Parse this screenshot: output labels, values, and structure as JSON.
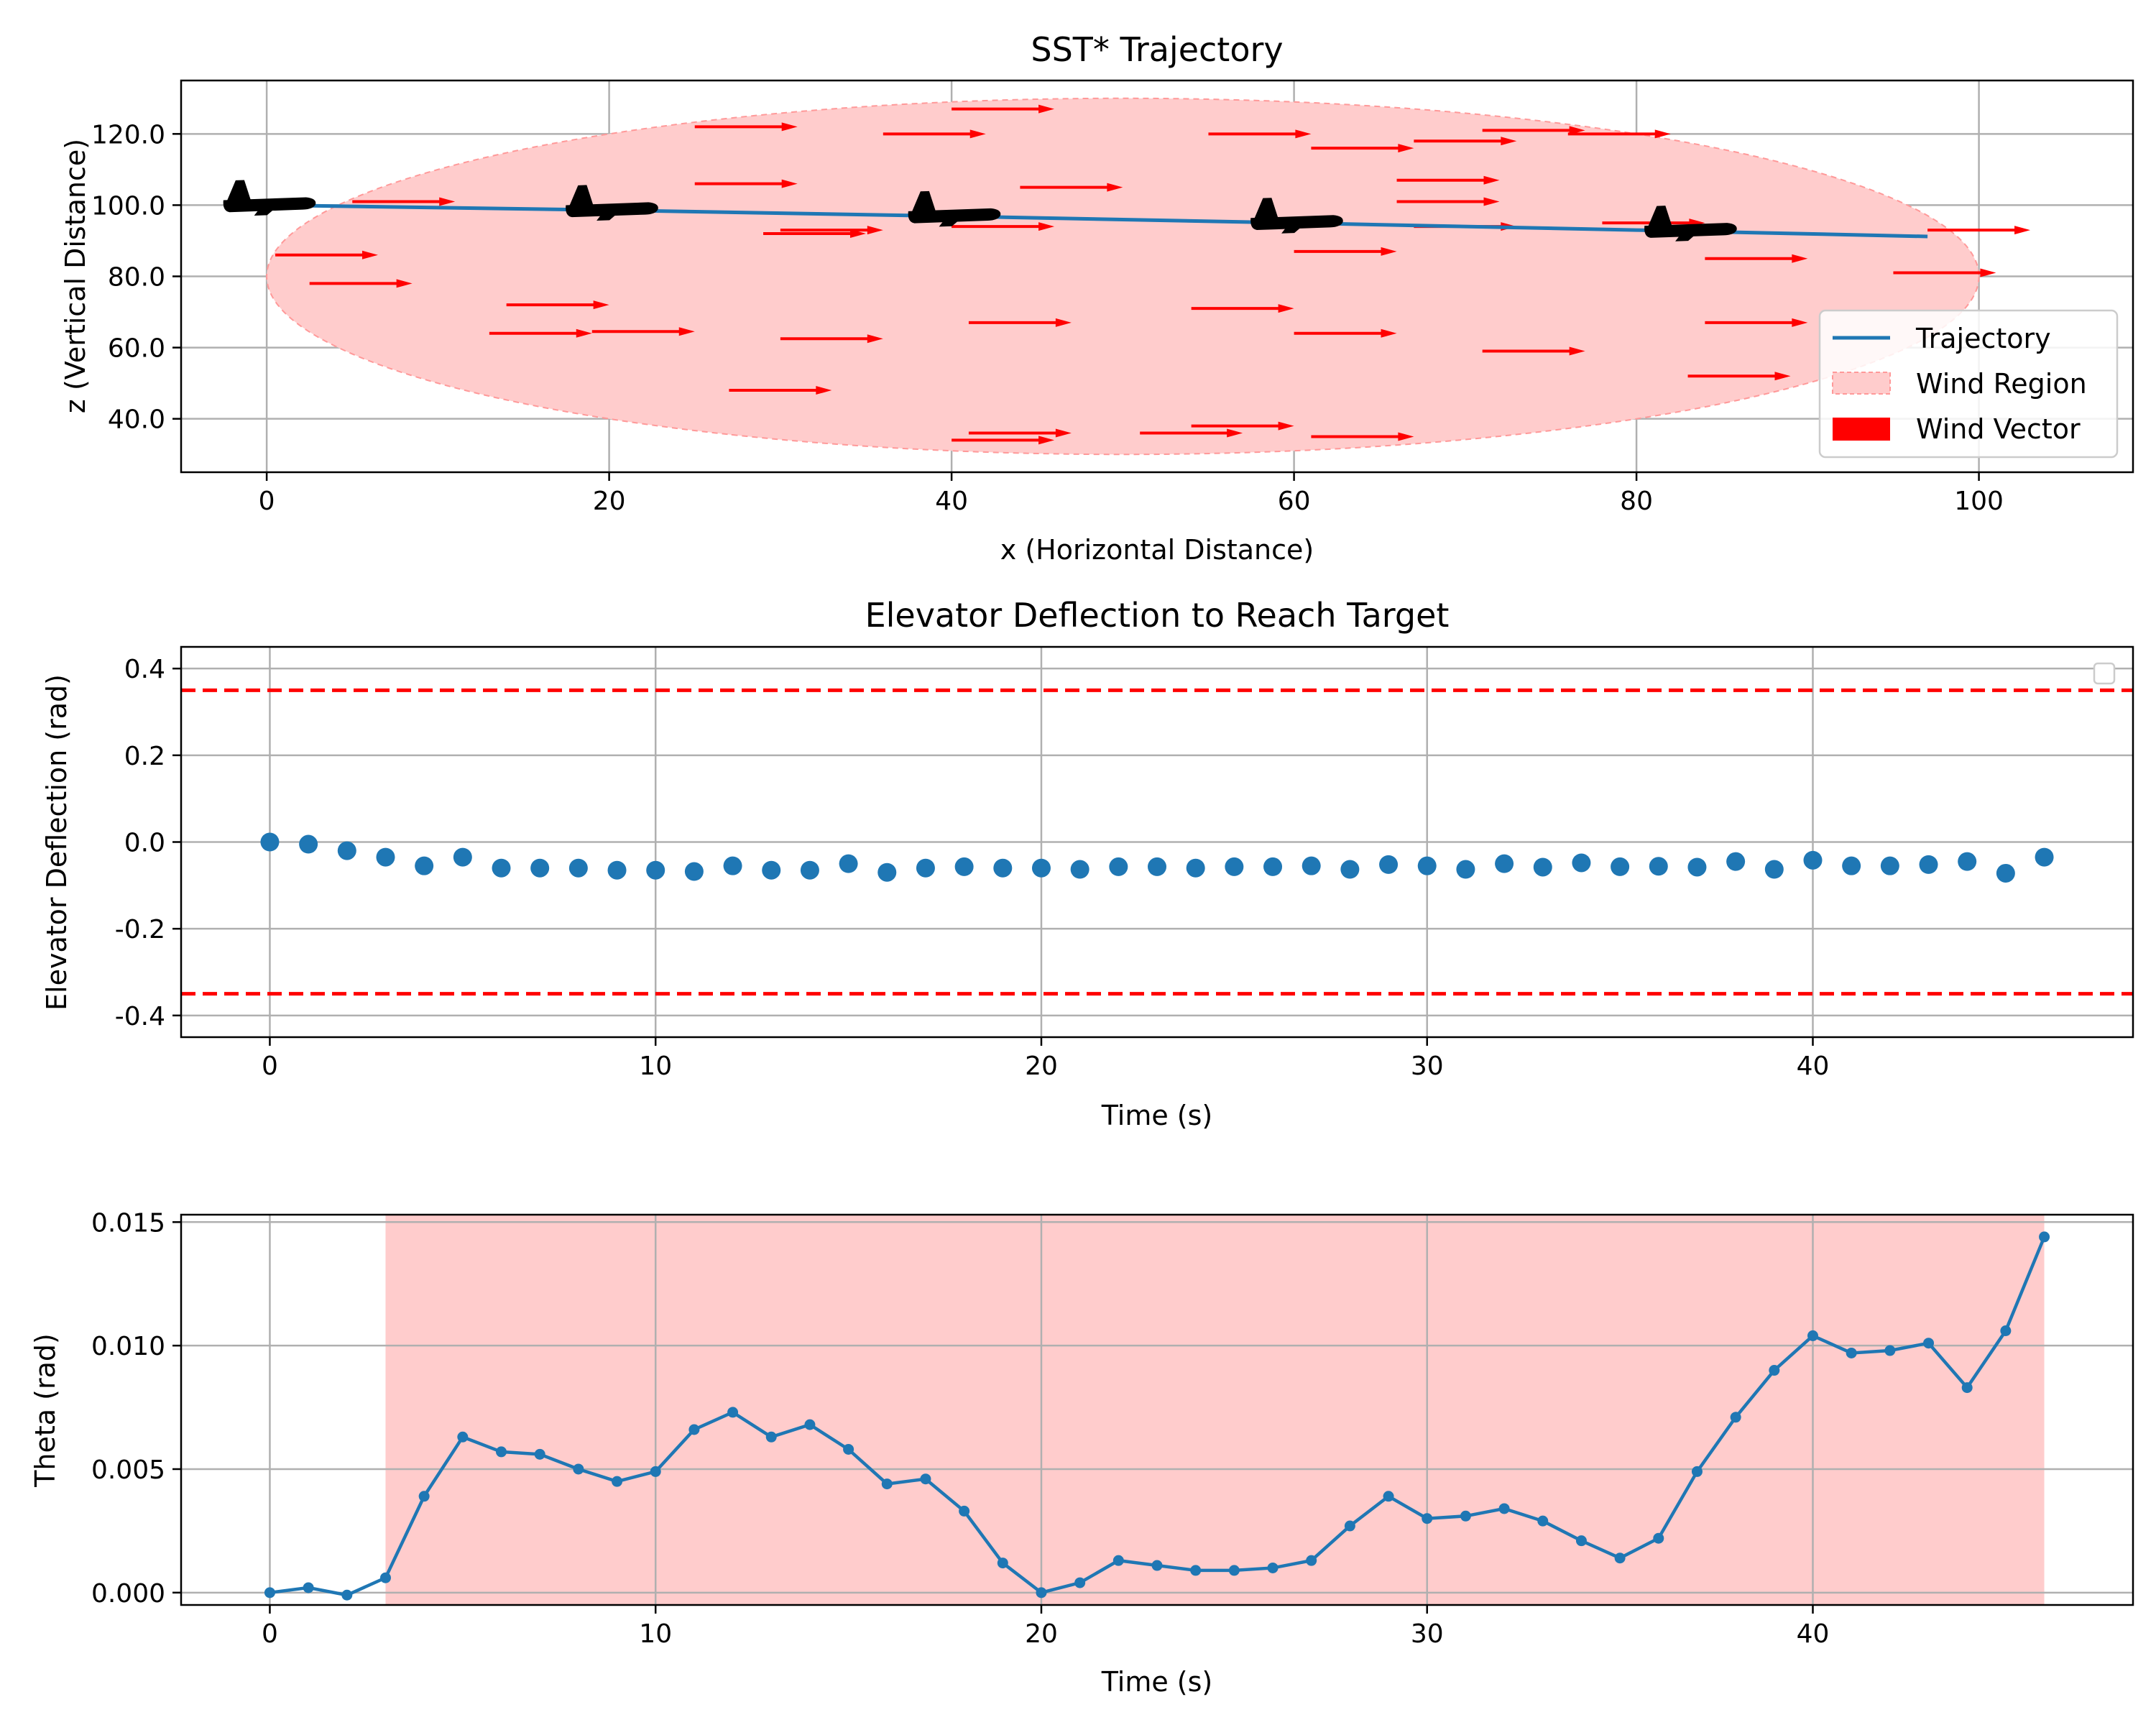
{
  "chart_data": [
    {
      "type": "line",
      "title": "SST* Trajectory",
      "xlabel": "x (Horizontal Distance)",
      "ylabel": "z (Vertical Distance)",
      "xlim": [
        -5,
        109
      ],
      "ylim": [
        25,
        135
      ],
      "xticks": [
        0,
        20,
        40,
        60,
        80,
        100
      ],
      "yticks": [
        40,
        60,
        80,
        100,
        120
      ],
      "grid": true,
      "legend": {
        "placement": "lower right",
        "entries": [
          "Trajectory",
          "Wind Region",
          "Wind Vector"
        ]
      },
      "colors": {
        "trajectory": "#1f77b4",
        "wind_region": "#ffcccc",
        "wind_vector": "#ff0000",
        "aircraft": "#000000"
      },
      "trajectory": {
        "name": "Trajectory",
        "x": [
          0,
          20,
          40,
          60,
          80,
          97
        ],
        "y": [
          100,
          98.6,
          96.9,
          95.0,
          93.0,
          91.2
        ]
      },
      "wind_region": {
        "name": "Wind Region",
        "center": [
          50,
          80
        ],
        "semi_axes": [
          50,
          50
        ]
      },
      "wind_vectors": {
        "name": "Wind Vector",
        "points": [
          [
            0.5,
            86
          ],
          [
            2.5,
            78
          ],
          [
            5,
            101
          ],
          [
            14,
            72
          ],
          [
            13,
            64
          ],
          [
            19,
            64.5
          ],
          [
            27,
            48
          ],
          [
            25,
            106
          ],
          [
            25,
            122
          ],
          [
            29,
            92
          ],
          [
            30,
            93
          ],
          [
            30,
            62.5
          ],
          [
            36,
            120
          ],
          [
            40,
            34
          ],
          [
            40,
            127
          ],
          [
            40,
            94
          ],
          [
            41,
            67
          ],
          [
            41,
            36
          ],
          [
            44,
            105
          ],
          [
            51,
            36
          ],
          [
            54,
            71
          ],
          [
            54,
            38
          ],
          [
            55,
            120
          ],
          [
            60,
            87
          ],
          [
            60,
            64
          ],
          [
            61,
            35
          ],
          [
            61,
            116
          ],
          [
            66,
            107
          ],
          [
            66,
            101
          ],
          [
            67,
            118
          ],
          [
            67,
            94
          ],
          [
            71,
            121
          ],
          [
            71,
            59
          ],
          [
            76,
            120
          ],
          [
            78,
            95
          ],
          [
            84,
            85
          ],
          [
            84,
            67
          ],
          [
            83,
            52
          ],
          [
            97,
            93
          ],
          [
            95,
            81
          ]
        ],
        "u": 6,
        "w": 0
      },
      "aircraft_markers": [
        {
          "x": 0,
          "y": 100
        },
        {
          "x": 20,
          "y": 98.6
        },
        {
          "x": 40,
          "y": 96.9
        },
        {
          "x": 60,
          "y": 95.0
        },
        {
          "x": 83,
          "y": 92.8
        }
      ]
    },
    {
      "type": "scatter",
      "title": "Elevator Deflection to Reach Target",
      "xlabel": "Time (s)",
      "ylabel": "Elevator Deflection (rad)",
      "xlim": [
        -2.3,
        48.3
      ],
      "ylim": [
        -0.45,
        0.45
      ],
      "xticks": [
        0,
        10,
        20,
        30,
        40
      ],
      "yticks": [
        -0.4,
        -0.2,
        0.0,
        0.2,
        0.4
      ],
      "grid": true,
      "legend": {
        "placement": "upper right",
        "entries": []
      },
      "colors": {
        "points": "#1f77b4",
        "limits": "#ff0000"
      },
      "limit_lines": [
        0.35,
        -0.35
      ],
      "series": [
        {
          "x": [
            0,
            1,
            2,
            3,
            4,
            5,
            6,
            7,
            8,
            9,
            10,
            11,
            12,
            13,
            14,
            15,
            16,
            17,
            18,
            19,
            20,
            21,
            22,
            23,
            24,
            25,
            26,
            27,
            28,
            29,
            30,
            31,
            32,
            33,
            34,
            35,
            36,
            37,
            38,
            39,
            40,
            41,
            42,
            43,
            44,
            45,
            46
          ],
          "values": [
            0.0,
            -0.005,
            -0.02,
            -0.035,
            -0.055,
            -0.035,
            -0.06,
            -0.06,
            -0.06,
            -0.065,
            -0.065,
            -0.068,
            -0.055,
            -0.065,
            -0.065,
            -0.05,
            -0.07,
            -0.06,
            -0.057,
            -0.06,
            -0.06,
            -0.063,
            -0.057,
            -0.057,
            -0.06,
            -0.057,
            -0.057,
            -0.055,
            -0.063,
            -0.052,
            -0.055,
            -0.063,
            -0.05,
            -0.058,
            -0.048,
            -0.057,
            -0.056,
            -0.058,
            -0.045,
            -0.063,
            -0.042,
            -0.055,
            -0.055,
            -0.052,
            -0.045,
            -0.072,
            -0.035
          ]
        }
      ]
    },
    {
      "type": "line",
      "title": "",
      "xlabel": "Time (s)",
      "ylabel": "Theta (rad)",
      "xlim": [
        -2.3,
        48.3
      ],
      "ylim": [
        -0.0005,
        0.0153
      ],
      "xticks": [
        0,
        10,
        20,
        30,
        40
      ],
      "yticks": [
        0.0,
        0.005,
        0.01,
        0.015
      ],
      "ytick_labels": [
        "0.000",
        "0.005",
        "0.010",
        "0.015"
      ],
      "grid": true,
      "colors": {
        "line": "#1f77b4",
        "shaded": "#ffcccc"
      },
      "shaded_span": [
        3,
        46
      ],
      "series": [
        {
          "x": [
            0,
            1,
            2,
            3,
            4,
            5,
            6,
            7,
            8,
            9,
            10,
            11,
            12,
            13,
            14,
            15,
            16,
            17,
            18,
            19,
            20,
            21,
            22,
            23,
            24,
            25,
            26,
            27,
            28,
            29,
            30,
            31,
            32,
            33,
            34,
            35,
            36,
            37,
            38,
            39,
            40,
            41,
            42,
            43,
            44,
            45,
            46
          ],
          "values": [
            0.0,
            0.0002,
            -0.0001,
            0.0006,
            0.0039,
            0.0063,
            0.0057,
            0.0056,
            0.005,
            0.0045,
            0.0049,
            0.0066,
            0.0073,
            0.0063,
            0.0068,
            0.0058,
            0.0044,
            0.0046,
            0.0033,
            0.0012,
            0.0,
            0.0004,
            0.0013,
            0.0011,
            0.0009,
            0.0009,
            0.001,
            0.0013,
            0.0027,
            0.0039,
            0.003,
            0.0031,
            0.0034,
            0.0029,
            0.0021,
            0.0014,
            0.0022,
            0.0049,
            0.0071,
            0.009,
            0.0104,
            0.0097,
            0.0098,
            0.0101,
            0.0083,
            0.0106,
            0.0144
          ]
        }
      ]
    }
  ]
}
